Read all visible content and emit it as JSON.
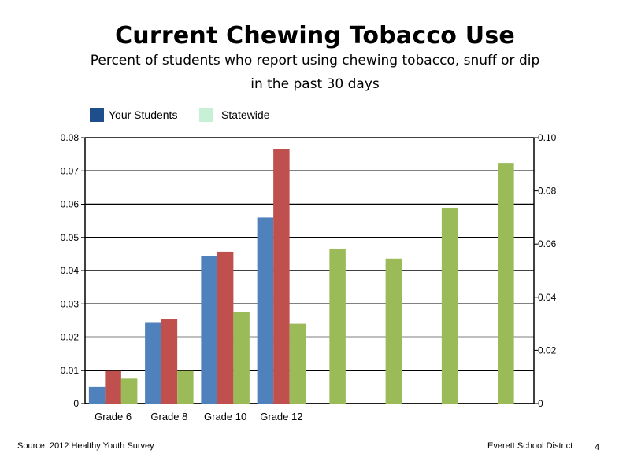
{
  "header": {
    "title": "Current Chewing Tobacco Use",
    "subtitle_line1": "Percent of students who report using chewing tobacco, snuff or dip",
    "subtitle_line2": "in the past 30 days"
  },
  "legend": [
    {
      "label": "Your Students",
      "color": "#1f4e8c"
    },
    {
      "label": "Statewide",
      "color": "#c8f0d6"
    }
  ],
  "footer": {
    "source": "Source: 2012 Healthy Youth Survey",
    "district": "Everett School District",
    "page_number": "4"
  },
  "chart_data": {
    "type": "bar",
    "categories": [
      "Grade 6",
      "Grade 8",
      "Grade 10",
      "Grade 12",
      "",
      "",
      "",
      ""
    ],
    "series": [
      {
        "color": "#4f81bd",
        "axis": "left",
        "values": [
          0.005,
          0.0245,
          0.0445,
          0.056,
          null,
          null,
          null,
          null
        ]
      },
      {
        "color": "#c0504d",
        "axis": "left",
        "values": [
          0.01,
          0.0255,
          0.0457,
          0.0765,
          null,
          null,
          null,
          null
        ]
      },
      {
        "color": "#9bbb59",
        "axis": "left",
        "values": [
          0.0075,
          0.01,
          0.0275,
          0.024,
          null,
          null,
          null,
          null
        ]
      },
      {
        "color": "#9bbb59",
        "axis": "right",
        "values": [
          null,
          null,
          null,
          null,
          0.0583,
          0.0545,
          0.0735,
          0.0905
        ]
      }
    ],
    "y_left": {
      "min": 0,
      "max": 0.08,
      "ticks": [
        "0",
        "0.01",
        "0.02",
        "0.03",
        "0.04",
        "0.05",
        "0.06",
        "0.07",
        "0.08"
      ]
    },
    "y_right": {
      "min": 0,
      "max": 0.1,
      "ticks": [
        "0",
        "0.02",
        "0.04",
        "0.06",
        "0.08",
        "0.10"
      ]
    },
    "grid": true
  }
}
